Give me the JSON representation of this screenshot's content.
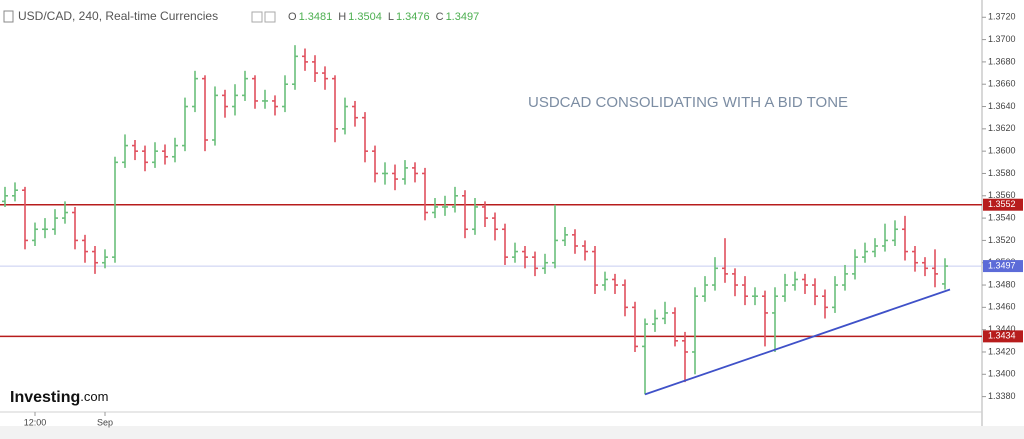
{
  "chart_data": {
    "type": "ohlc",
    "title": "USD/CAD, 240, Real-time Currencies",
    "header_ohlc": [
      {
        "label": "O",
        "value": 1.3481
      },
      {
        "label": "H",
        "value": 1.3504
      },
      {
        "label": "L",
        "value": 1.3476
      },
      {
        "label": "C",
        "value": 1.3497
      }
    ],
    "annotation": "USDCAD CONSOLIDATING WITH A BID TONE",
    "logo": {
      "bold": "Investing",
      "suffix": ".com"
    },
    "up_color": "#6abf7b",
    "down_color": "#e0505e",
    "ylim": [
      1.3368,
      1.3731
    ],
    "yticks": [
      {
        "value": 1.338,
        "label": "1.3380"
      },
      {
        "value": 1.34,
        "label": "1.3400"
      },
      {
        "value": 1.342,
        "label": "1.3420"
      },
      {
        "value": 1.344,
        "label": "1.3440"
      },
      {
        "value": 1.346,
        "label": "1.3460"
      },
      {
        "value": 1.348,
        "label": "1.3480"
      },
      {
        "value": 1.35,
        "label": "1.3500"
      },
      {
        "value": 1.352,
        "label": "1.3520"
      },
      {
        "value": 1.354,
        "label": "1.3540"
      },
      {
        "value": 1.356,
        "label": "1.3560"
      },
      {
        "value": 1.358,
        "label": "1.3580"
      },
      {
        "value": 1.36,
        "label": "1.3600"
      },
      {
        "value": 1.362,
        "label": "1.3620"
      },
      {
        "value": 1.364,
        "label": "1.3640"
      },
      {
        "value": 1.366,
        "label": "1.3660"
      },
      {
        "value": 1.368,
        "label": "1.3680"
      },
      {
        "value": 1.37,
        "label": "1.3700"
      },
      {
        "value": 1.372,
        "label": "1.3720"
      }
    ],
    "x_labels": [
      {
        "index": 3,
        "label": "12:00"
      },
      {
        "index": 10,
        "label": "Sep"
      }
    ],
    "levels": [
      {
        "value": 1.3552,
        "color": "#b71c1c"
      },
      {
        "value": 1.3434,
        "color": "#b71c1c"
      },
      {
        "value": 1.3497,
        "color": "#5c6bd8",
        "line_color": "#c8cdf0"
      }
    ],
    "trendline": {
      "color": "#3f51c8",
      "points": [
        {
          "index": 64,
          "price": 1.3382
        },
        {
          "index": 94.5,
          "price": 1.3476
        }
      ]
    },
    "open": [
      1.3555,
      1.356,
      1.3565,
      1.352,
      1.353,
      1.353,
      1.354,
      1.3545,
      1.352,
      1.351,
      1.35,
      1.3505,
      1.359,
      1.3605,
      1.36,
      1.359,
      1.36,
      1.3595,
      1.3605,
      1.364,
      1.3665,
      1.361,
      1.365,
      1.364,
      1.365,
      1.3665,
      1.3645,
      1.3645,
      1.364,
      1.366,
      1.3685,
      1.368,
      1.367,
      1.3665,
      1.362,
      1.364,
      1.363,
      1.36,
      1.358,
      1.358,
      1.3575,
      1.3585,
      1.358,
      1.3545,
      1.355,
      1.355,
      1.356,
      1.353,
      1.355,
      1.354,
      1.353,
      1.3505,
      1.351,
      1.3505,
      1.3495,
      1.35,
      1.352,
      1.3525,
      1.3515,
      1.351,
      1.348,
      1.3485,
      1.348,
      1.346,
      1.3425,
      1.3445,
      1.345,
      1.3455,
      1.343,
      1.342,
      1.347,
      1.348,
      1.3495,
      1.349,
      1.348,
      1.347,
      1.347,
      1.3455,
      1.347,
      1.348,
      1.3485,
      1.348,
      1.347,
      1.346,
      1.348,
      1.349,
      1.3505,
      1.351,
      1.3515,
      1.352,
      1.353,
      1.351,
      1.35,
      1.3495,
      1.3481
    ],
    "high": [
      1.3568,
      1.3572,
      1.3568,
      1.3536,
      1.354,
      1.3548,
      1.3555,
      1.355,
      1.3525,
      1.3515,
      1.3512,
      1.3595,
      1.3615,
      1.361,
      1.3605,
      1.3608,
      1.3606,
      1.3612,
      1.3648,
      1.3672,
      1.3668,
      1.3658,
      1.3655,
      1.366,
      1.3672,
      1.3668,
      1.3655,
      1.365,
      1.3668,
      1.3695,
      1.3692,
      1.3686,
      1.3676,
      1.3668,
      1.3648,
      1.3645,
      1.3635,
      1.3605,
      1.359,
      1.3588,
      1.3592,
      1.359,
      1.3585,
      1.3558,
      1.356,
      1.3568,
      1.3565,
      1.3558,
      1.3555,
      1.3545,
      1.3535,
      1.3518,
      1.3515,
      1.351,
      1.3508,
      1.3552,
      1.3532,
      1.353,
      1.352,
      1.3515,
      1.3492,
      1.349,
      1.3485,
      1.3465,
      1.345,
      1.3458,
      1.3465,
      1.346,
      1.3438,
      1.3478,
      1.3488,
      1.3505,
      1.3522,
      1.3495,
      1.3488,
      1.3478,
      1.3475,
      1.3478,
      1.349,
      1.3492,
      1.349,
      1.3486,
      1.3476,
      1.3488,
      1.3498,
      1.3512,
      1.3518,
      1.3522,
      1.3535,
      1.3538,
      1.3542,
      1.3515,
      1.3505,
      1.3512,
      1.3504
    ],
    "low": [
      1.355,
      1.3555,
      1.3512,
      1.3515,
      1.3522,
      1.3525,
      1.3535,
      1.3512,
      1.35,
      1.349,
      1.3495,
      1.35,
      1.3585,
      1.3592,
      1.3582,
      1.3585,
      1.3588,
      1.359,
      1.36,
      1.3635,
      1.36,
      1.3605,
      1.363,
      1.3632,
      1.3645,
      1.3638,
      1.3638,
      1.3632,
      1.3635,
      1.3655,
      1.3672,
      1.3662,
      1.3655,
      1.3608,
      1.3615,
      1.3622,
      1.359,
      1.3572,
      1.357,
      1.3565,
      1.357,
      1.3572,
      1.3538,
      1.354,
      1.3542,
      1.3545,
      1.3522,
      1.3525,
      1.3532,
      1.352,
      1.3498,
      1.35,
      1.3495,
      1.3488,
      1.349,
      1.3495,
      1.3515,
      1.3508,
      1.3502,
      1.3472,
      1.3475,
      1.3472,
      1.3452,
      1.342,
      1.3382,
      1.3438,
      1.3445,
      1.3425,
      1.3393,
      1.34,
      1.3465,
      1.3475,
      1.3482,
      1.347,
      1.3462,
      1.3462,
      1.3425,
      1.342,
      1.3465,
      1.3475,
      1.3472,
      1.3462,
      1.345,
      1.3455,
      1.3475,
      1.3485,
      1.35,
      1.3505,
      1.351,
      1.3515,
      1.3502,
      1.3492,
      1.3488,
      1.3478,
      1.3476
    ],
    "close": [
      1.356,
      1.3565,
      1.352,
      1.353,
      1.353,
      1.354,
      1.3545,
      1.352,
      1.351,
      1.35,
      1.3505,
      1.359,
      1.3605,
      1.36,
      1.359,
      1.36,
      1.3595,
      1.3605,
      1.364,
      1.3665,
      1.361,
      1.365,
      1.364,
      1.365,
      1.3665,
      1.3645,
      1.3645,
      1.364,
      1.366,
      1.3685,
      1.368,
      1.367,
      1.3665,
      1.362,
      1.364,
      1.363,
      1.36,
      1.358,
      1.358,
      1.3575,
      1.3585,
      1.358,
      1.3545,
      1.355,
      1.355,
      1.356,
      1.353,
      1.355,
      1.354,
      1.353,
      1.3505,
      1.351,
      1.3505,
      1.3495,
      1.35,
      1.352,
      1.3525,
      1.3515,
      1.351,
      1.348,
      1.3485,
      1.348,
      1.346,
      1.3425,
      1.3445,
      1.345,
      1.3455,
      1.343,
      1.342,
      1.347,
      1.348,
      1.3495,
      1.349,
      1.348,
      1.347,
      1.347,
      1.3455,
      1.347,
      1.348,
      1.3485,
      1.348,
      1.347,
      1.346,
      1.348,
      1.349,
      1.3505,
      1.351,
      1.3515,
      1.352,
      1.353,
      1.351,
      1.35,
      1.3495,
      1.349,
      1.3497
    ]
  }
}
